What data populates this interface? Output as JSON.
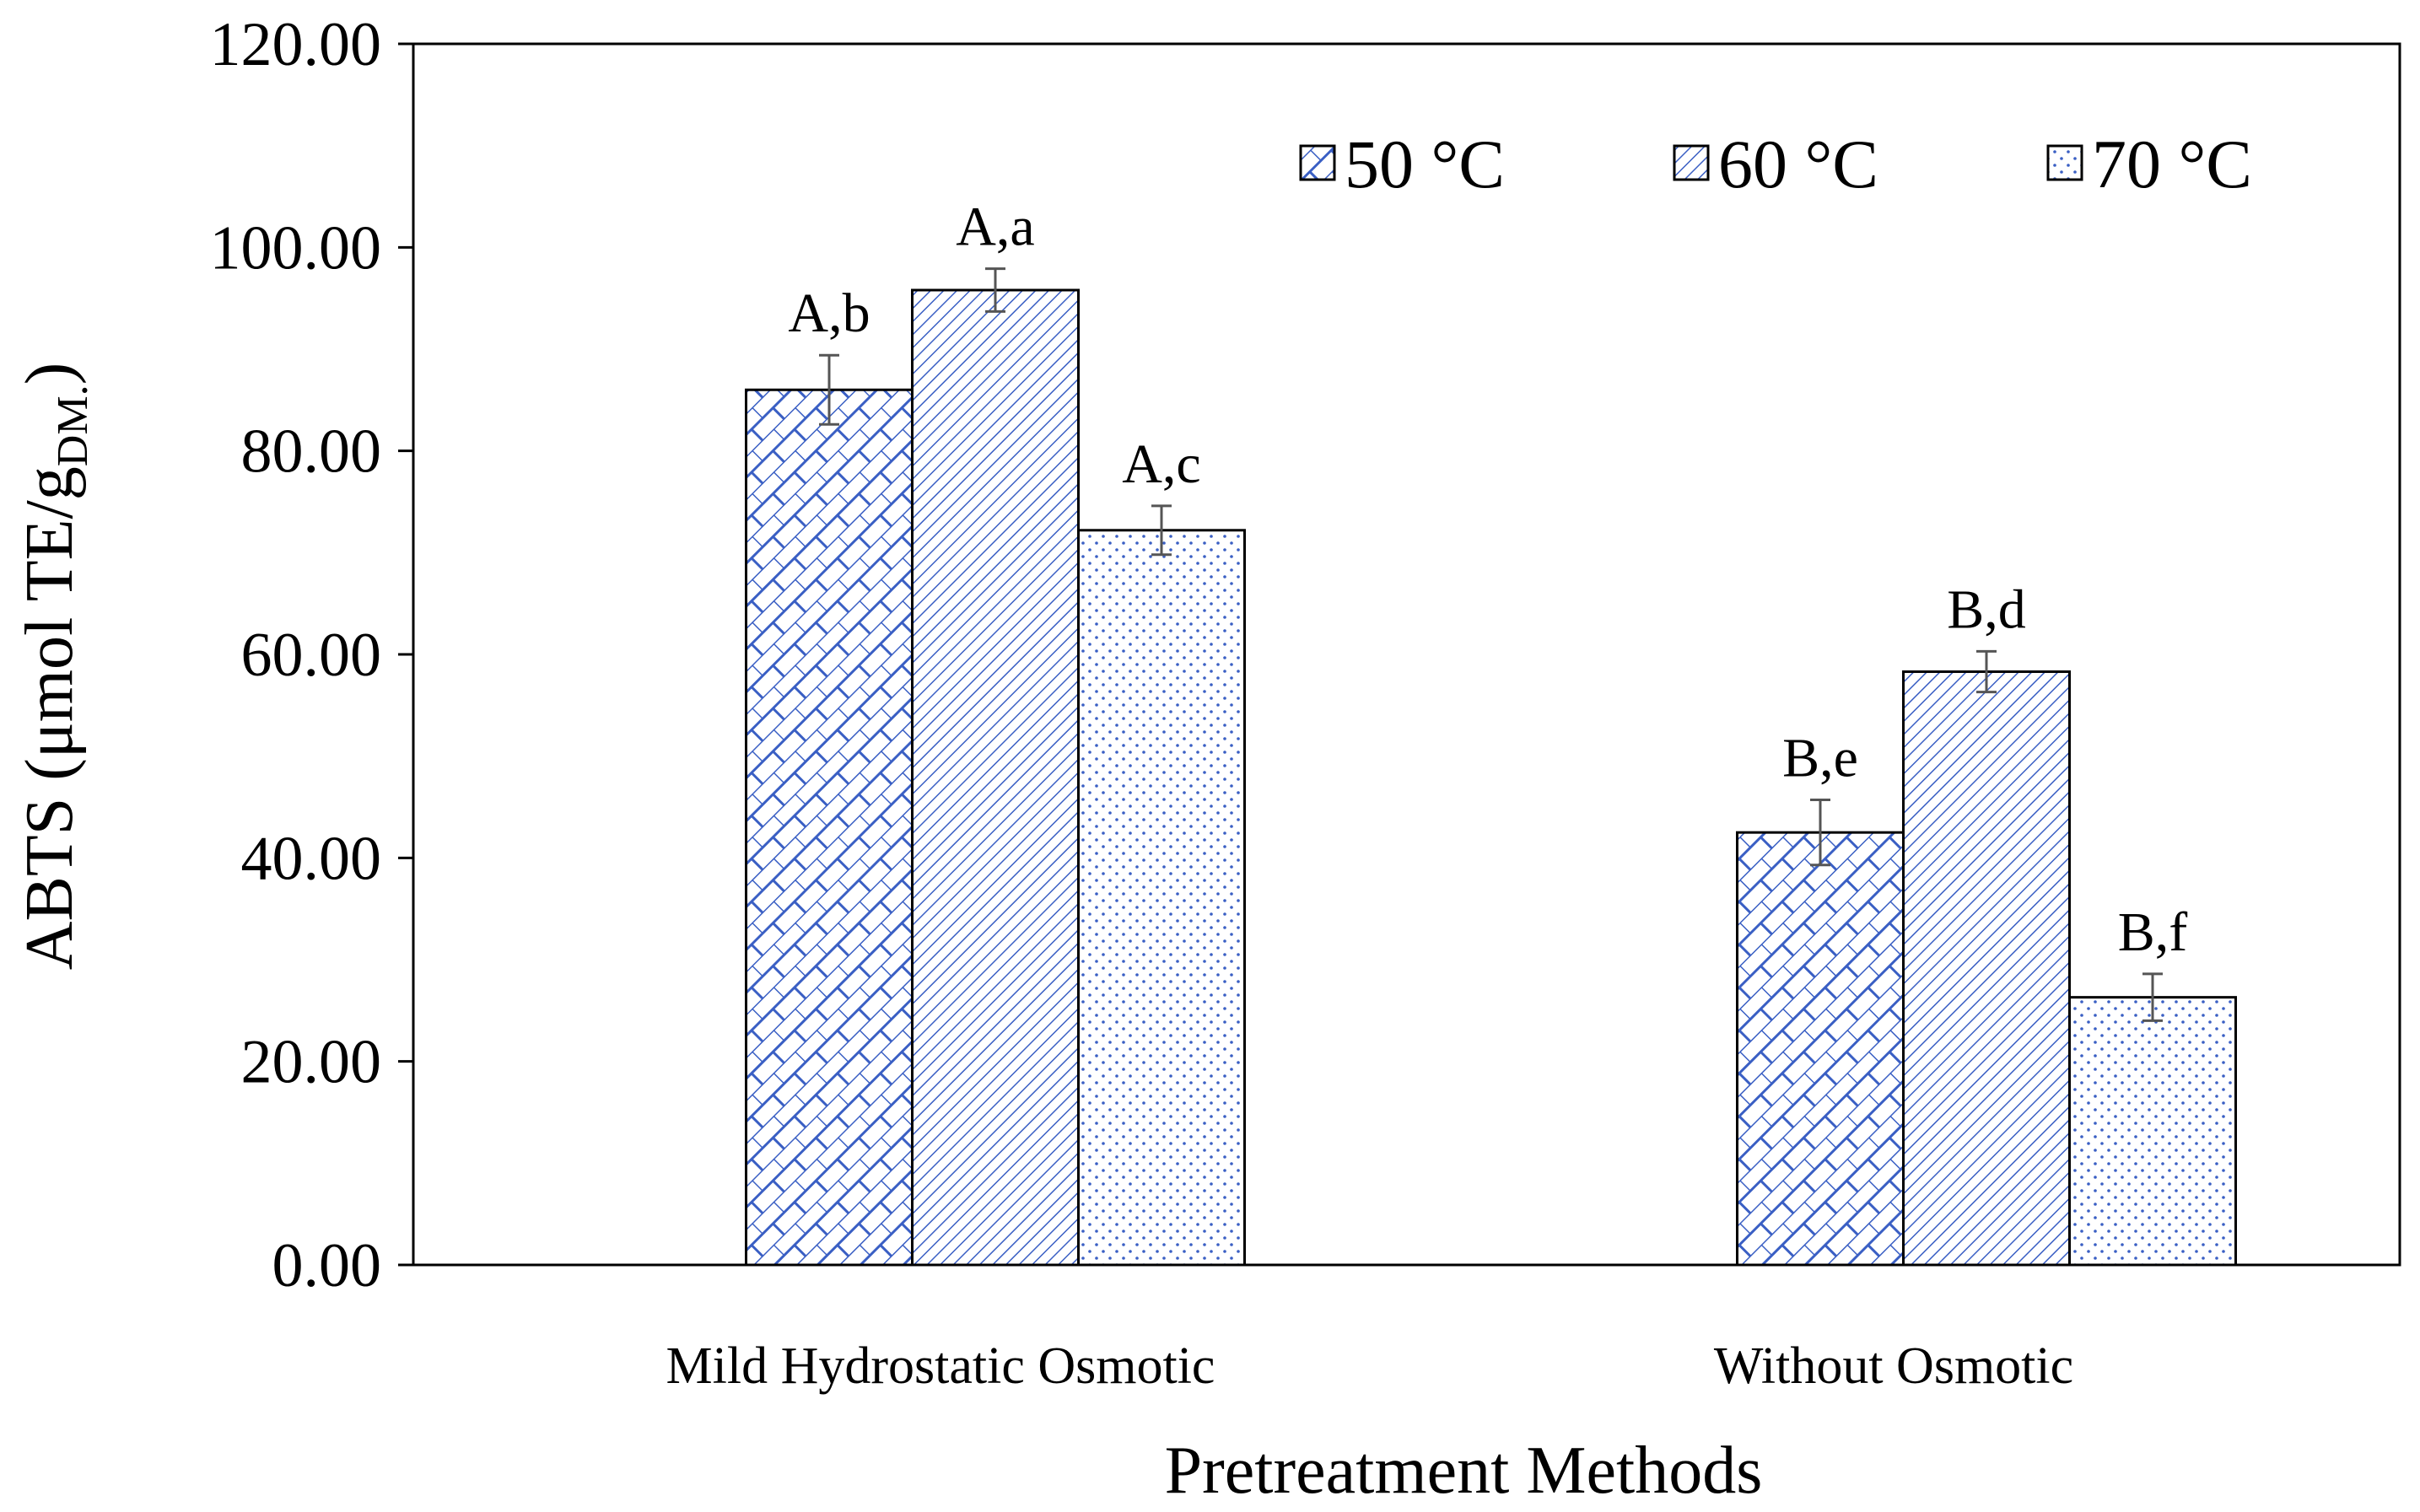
{
  "chart_data": {
    "type": "bar",
    "title": "",
    "xlabel": "Pretreatment  Methods",
    "ylabel": "ABTS (μmol TE/g",
    "ylabel_subscript": "DM.",
    "ylabel_close": ")",
    "ylim": [
      0,
      120
    ],
    "yticks": [
      0,
      20,
      40,
      60,
      80,
      100,
      120
    ],
    "ytick_labels": [
      "0.00",
      "20.00",
      "40.00",
      "60.00",
      "80.00",
      "100.00",
      "120.00"
    ],
    "categories": [
      "Mild Hydrostatic Osmotic",
      "Without Osmotic"
    ],
    "legend_position": "top-right",
    "series": [
      {
        "name": "50 °C",
        "pattern": "brick",
        "values": [
          86.0,
          42.5
        ],
        "errors": [
          3.4,
          3.2
        ],
        "labels": [
          "A,b",
          "B,e"
        ]
      },
      {
        "name": "60 °C",
        "pattern": "diagonal",
        "values": [
          95.8,
          58.3
        ],
        "errors": [
          2.1,
          2.0
        ],
        "labels": [
          "A,a",
          "B,d"
        ]
      },
      {
        "name": "70 °C",
        "pattern": "dots",
        "values": [
          72.2,
          26.3
        ],
        "errors": [
          2.4,
          2.3
        ],
        "labels": [
          "A,c",
          "B,f"
        ]
      }
    ],
    "colors": {
      "pattern": "#3a5fc4",
      "axis": "#000000",
      "error_bar": "#555555"
    }
  }
}
